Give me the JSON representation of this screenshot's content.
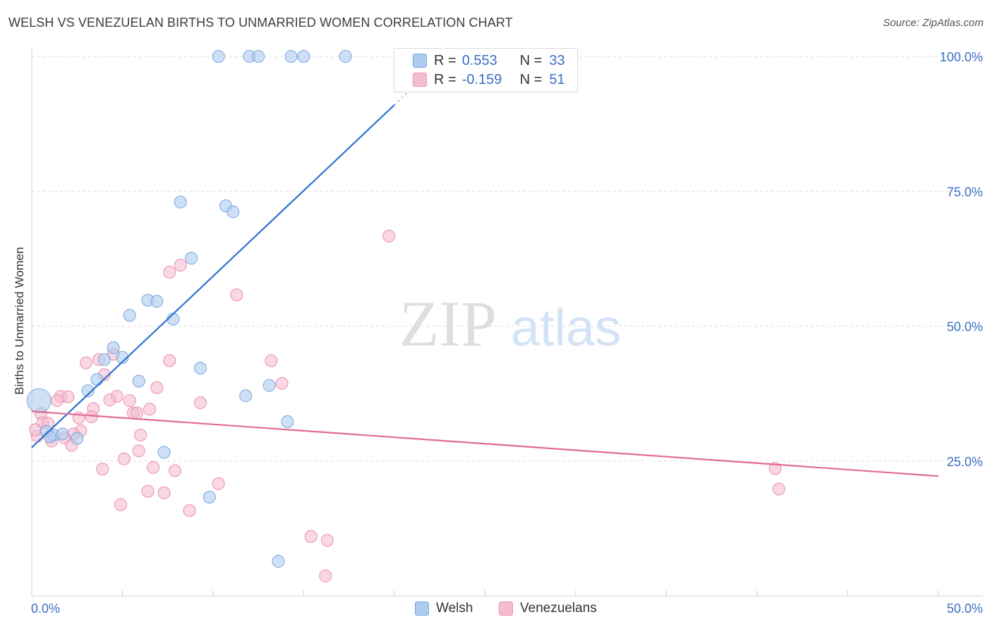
{
  "title": "WELSH VS VENEZUELAN BIRTHS TO UNMARRIED WOMEN CORRELATION CHART",
  "source": "Source: ZipAtlas.com",
  "watermark": {
    "zip": "ZIP",
    "atlas": "atlas"
  },
  "legend": {
    "rows": [
      {
        "r_label": "R =",
        "r_value": "0.553",
        "n_label": "N =",
        "n_value": "33"
      },
      {
        "r_label": "R =",
        "r_value": "-0.159",
        "n_label": "N =",
        "n_value": "51"
      }
    ]
  },
  "bottom_legend": {
    "welsh": "Welsh",
    "venezuelans": "Venezuelans"
  },
  "colors": {
    "welsh_fill": "#aecbf0",
    "welsh_stroke": "#7aa6dd",
    "welsh_line": "#2e72d2",
    "venez_fill": "#f5bcd0",
    "venez_stroke": "#e98fad",
    "venez_line": "#e26a94",
    "axis_text": "#3a6fc4",
    "grid": "#dddddd"
  },
  "chart_data": {
    "type": "scatter",
    "title": "WELSH VS VENEZUELAN BIRTHS TO UNMARRIED WOMEN CORRELATION CHART",
    "xlabel": "",
    "ylabel": "Births to Unmarried Women",
    "xlim": [
      0,
      50
    ],
    "ylim": [
      0,
      104
    ],
    "x_tick_labels": [
      "0.0%",
      "50.0%"
    ],
    "y_ticks": [
      25,
      50,
      75,
      100
    ],
    "y_tick_labels": [
      "25.0%",
      "50.0%",
      "75.0%",
      "100.0%"
    ],
    "series": [
      {
        "name": "Welsh",
        "r": 0.553,
        "n": 33,
        "trend": {
          "x": [
            0,
            20
          ],
          "y": [
            27.5,
            91.0
          ]
        },
        "points": [
          {
            "x": 10.3,
            "y": 100
          },
          {
            "x": 12.0,
            "y": 100
          },
          {
            "x": 12.5,
            "y": 100
          },
          {
            "x": 14.3,
            "y": 100
          },
          {
            "x": 15.0,
            "y": 100
          },
          {
            "x": 17.3,
            "y": 100
          },
          {
            "x": 8.2,
            "y": 73.0
          },
          {
            "x": 10.7,
            "y": 72.3
          },
          {
            "x": 11.1,
            "y": 71.2
          },
          {
            "x": 8.8,
            "y": 62.6
          },
          {
            "x": 6.4,
            "y": 54.8
          },
          {
            "x": 6.9,
            "y": 54.6
          },
          {
            "x": 5.4,
            "y": 52.0
          },
          {
            "x": 7.8,
            "y": 51.3
          },
          {
            "x": 4.5,
            "y": 46.0
          },
          {
            "x": 4.0,
            "y": 43.8
          },
          {
            "x": 5.0,
            "y": 44.2
          },
          {
            "x": 9.3,
            "y": 42.2
          },
          {
            "x": 3.6,
            "y": 40.1
          },
          {
            "x": 5.9,
            "y": 39.8
          },
          {
            "x": 13.1,
            "y": 39.0
          },
          {
            "x": 3.1,
            "y": 38.0
          },
          {
            "x": 11.8,
            "y": 37.1
          },
          {
            "x": 14.1,
            "y": 32.3
          },
          {
            "x": 0.4,
            "y": 36.2,
            "big": true
          },
          {
            "x": 0.8,
            "y": 30.5
          },
          {
            "x": 1.2,
            "y": 29.8
          },
          {
            "x": 1.7,
            "y": 30.0
          },
          {
            "x": 2.5,
            "y": 29.2
          },
          {
            "x": 7.3,
            "y": 26.6
          },
          {
            "x": 9.8,
            "y": 18.3
          },
          {
            "x": 13.6,
            "y": 6.4
          },
          {
            "x": 1.0,
            "y": 29.5
          }
        ]
      },
      {
        "name": "Venezuelans",
        "r": -0.159,
        "n": 51,
        "trend": {
          "x": [
            0,
            50
          ],
          "y": [
            34.2,
            22.2
          ]
        },
        "points": [
          {
            "x": 19.7,
            "y": 66.7
          },
          {
            "x": 8.2,
            "y": 61.3
          },
          {
            "x": 7.6,
            "y": 60.0
          },
          {
            "x": 11.3,
            "y": 55.8
          },
          {
            "x": 4.5,
            "y": 44.8
          },
          {
            "x": 3.7,
            "y": 43.8
          },
          {
            "x": 3.0,
            "y": 43.2
          },
          {
            "x": 7.6,
            "y": 43.6
          },
          {
            "x": 13.2,
            "y": 43.6
          },
          {
            "x": 4.0,
            "y": 41.0
          },
          {
            "x": 13.8,
            "y": 39.4
          },
          {
            "x": 6.9,
            "y": 38.6
          },
          {
            "x": 1.6,
            "y": 37.0
          },
          {
            "x": 2.0,
            "y": 36.9
          },
          {
            "x": 4.7,
            "y": 37.0
          },
          {
            "x": 1.4,
            "y": 36.2
          },
          {
            "x": 4.3,
            "y": 36.3
          },
          {
            "x": 5.4,
            "y": 36.2
          },
          {
            "x": 9.3,
            "y": 35.8
          },
          {
            "x": 3.4,
            "y": 34.7
          },
          {
            "x": 6.5,
            "y": 34.6
          },
          {
            "x": 5.6,
            "y": 33.9
          },
          {
            "x": 5.8,
            "y": 33.9
          },
          {
            "x": 0.5,
            "y": 33.8
          },
          {
            "x": 3.3,
            "y": 33.2
          },
          {
            "x": 2.6,
            "y": 33.0
          },
          {
            "x": 0.6,
            "y": 32.1
          },
          {
            "x": 0.9,
            "y": 32.0
          },
          {
            "x": 2.7,
            "y": 30.6
          },
          {
            "x": 2.3,
            "y": 30.0
          },
          {
            "x": 6.0,
            "y": 29.8
          },
          {
            "x": 0.3,
            "y": 29.6
          },
          {
            "x": 1.8,
            "y": 29.3
          },
          {
            "x": 1.1,
            "y": 28.7
          },
          {
            "x": 2.2,
            "y": 27.9
          },
          {
            "x": 5.9,
            "y": 26.9
          },
          {
            "x": 5.1,
            "y": 25.4
          },
          {
            "x": 3.9,
            "y": 23.5
          },
          {
            "x": 6.7,
            "y": 23.8
          },
          {
            "x": 7.9,
            "y": 23.2
          },
          {
            "x": 41.0,
            "y": 23.6
          },
          {
            "x": 10.3,
            "y": 20.8
          },
          {
            "x": 41.2,
            "y": 19.8
          },
          {
            "x": 6.4,
            "y": 19.4
          },
          {
            "x": 7.3,
            "y": 19.1
          },
          {
            "x": 4.9,
            "y": 16.9
          },
          {
            "x": 8.7,
            "y": 15.8
          },
          {
            "x": 15.4,
            "y": 11.0
          },
          {
            "x": 16.3,
            "y": 10.3
          },
          {
            "x": 16.2,
            "y": 3.7
          },
          {
            "x": 0.2,
            "y": 30.8
          }
        ]
      }
    ]
  }
}
